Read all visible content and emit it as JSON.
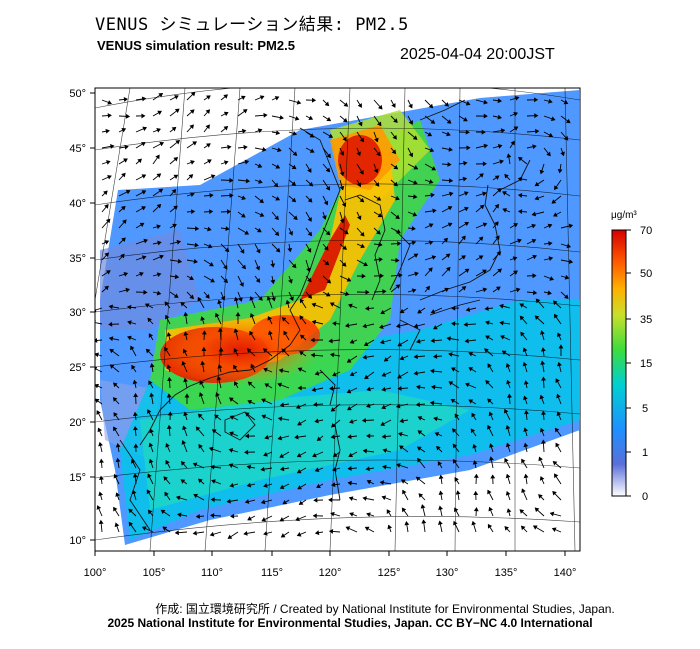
{
  "title_jp": "VENUS シミュレーション結果: PM2.5",
  "title_en": "VENUS simulation result: PM2.5",
  "timestamp": "2025-04-04 20:00JST",
  "unit": "μg/m³",
  "latitude_ticks": [
    "50°",
    "45°",
    "40°",
    "35°",
    "30°",
    "25°",
    "20°",
    "15°",
    "10°"
  ],
  "longitude_ticks": [
    "100°",
    "105°",
    "110°",
    "115°",
    "120°",
    "125°",
    "130°",
    "135°",
    "140°"
  ],
  "colorbar": {
    "ticks": [
      "70",
      "50",
      "35",
      "15",
      "5",
      "1",
      "0"
    ],
    "colors": [
      "#ffffff",
      "#5a6fd8",
      "#1e90ff",
      "#00d0d0",
      "#3ddc3d",
      "#c8e02a",
      "#ffb000",
      "#ff5a00",
      "#d40000"
    ]
  },
  "credit_jp": "作成: 国立環境研究所 / Created by National Institute for Environmental Studies, Japan.",
  "credit_en": "2025 National Institute for Environmental Studies, Japan. CC BY−NC 4.0 International"
}
